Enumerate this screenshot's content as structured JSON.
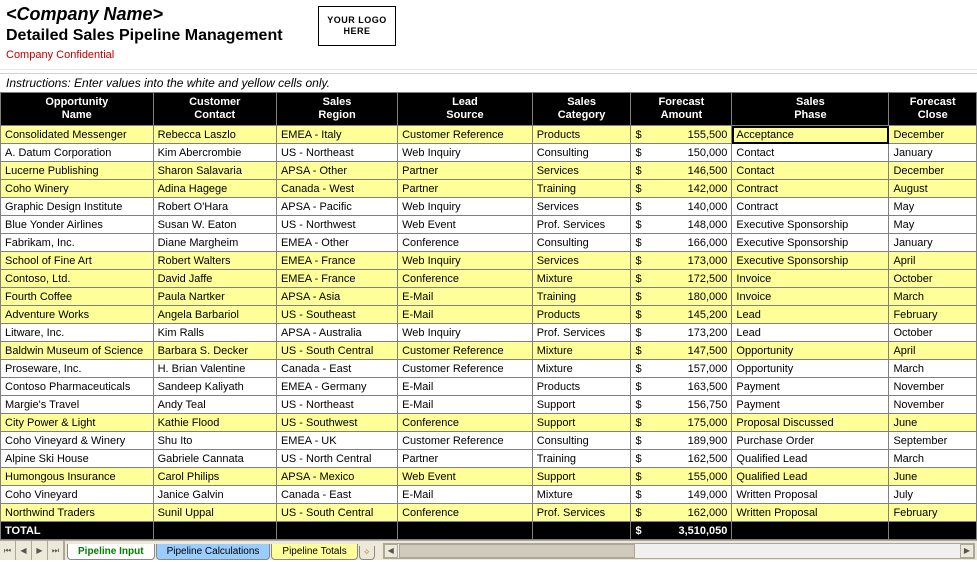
{
  "header": {
    "company_name": "<Company Name>",
    "title": "Detailed Sales Pipeline Management",
    "confidential": "Company Confidential",
    "logo_text": "YOUR LOGO HERE",
    "instructions": "Instructions: Enter values into the white and yellow cells only."
  },
  "colors": {
    "header_bg": "#000000",
    "header_fg": "#ffffff",
    "row_yellow": "#ffff99",
    "row_white": "#ffffff",
    "grid_border": "#808080",
    "confidential": "#c00000",
    "tab_active_text": "#008000",
    "tab_calc_bg": "#99ccff",
    "tab_totals_bg": "#ffff99",
    "app_chrome": "#ece9d8"
  },
  "columns": [
    {
      "line1": "Opportunity",
      "line2": "Name",
      "class": "c0"
    },
    {
      "line1": "Customer",
      "line2": "Contact",
      "class": "c1"
    },
    {
      "line1": "Sales",
      "line2": "Region",
      "class": "c2"
    },
    {
      "line1": "Lead",
      "line2": "Source",
      "class": "c3"
    },
    {
      "line1": "Sales",
      "line2": "Category",
      "class": "c4"
    },
    {
      "line1": "Forecast",
      "line2": "Amount",
      "class": "c5"
    },
    {
      "line1": "Sales",
      "line2": "Phase",
      "class": "c6"
    },
    {
      "line1": "Forecast",
      "line2": "Close",
      "class": "c7"
    }
  ],
  "rows": [
    {
      "bg": "yellow",
      "cells": [
        "Consolidated Messenger",
        "Rebecca Laszlo",
        "EMEA - Italy",
        "Customer Reference",
        "Products",
        "155,500",
        "Acceptance",
        "December"
      ],
      "phase_selected": true
    },
    {
      "bg": "white",
      "cells": [
        "A. Datum Corporation",
        "Kim Abercrombie",
        "US - Northeast",
        "Web Inquiry",
        "Consulting",
        "150,000",
        "Contact",
        "January"
      ]
    },
    {
      "bg": "yellow",
      "cells": [
        "Lucerne Publishing",
        "Sharon Salavaria",
        "APSA - Other",
        "Partner",
        "Services",
        "146,500",
        "Contact",
        "December"
      ]
    },
    {
      "bg": "yellow",
      "cells": [
        "Coho Winery",
        "Adina Hagege",
        "Canada - West",
        "Partner",
        "Training",
        "142,000",
        "Contract",
        "August"
      ]
    },
    {
      "bg": "white",
      "cells": [
        "Graphic Design Institute",
        "Robert O'Hara",
        "APSA - Pacific",
        "Web Inquiry",
        "Services",
        "140,000",
        "Contract",
        "May"
      ]
    },
    {
      "bg": "white",
      "cells": [
        "Blue Yonder Airlines",
        "Susan W. Eaton",
        "US - Northwest",
        "Web Event",
        "Prof. Services",
        "148,000",
        "Executive Sponsorship",
        "May"
      ]
    },
    {
      "bg": "white",
      "cells": [
        "Fabrikam, Inc.",
        "Diane Margheim",
        "EMEA - Other",
        "Conference",
        "Consulting",
        "166,000",
        "Executive Sponsorship",
        "January"
      ]
    },
    {
      "bg": "yellow",
      "cells": [
        "School of Fine Art",
        "Robert Walters",
        "EMEA - France",
        "Web Inquiry",
        "Services",
        "173,000",
        "Executive Sponsorship",
        "April"
      ]
    },
    {
      "bg": "yellow",
      "cells": [
        "Contoso, Ltd.",
        "David Jaffe",
        "EMEA - France",
        "Conference",
        "Mixture",
        "172,500",
        "Invoice",
        "October"
      ]
    },
    {
      "bg": "yellow",
      "cells": [
        "Fourth Coffee",
        "Paula Nartker",
        "APSA - Asia",
        "E-Mail",
        "Training",
        "180,000",
        "Invoice",
        "March"
      ]
    },
    {
      "bg": "yellow",
      "cells": [
        "Adventure Works",
        "Angela Barbariol",
        "US - Southeast",
        "E-Mail",
        "Products",
        "145,200",
        "Lead",
        "February"
      ]
    },
    {
      "bg": "white",
      "cells": [
        "Litware, Inc.",
        "Kim Ralls",
        "APSA - Australia",
        "Web Inquiry",
        "Prof. Services",
        "173,200",
        "Lead",
        "October"
      ]
    },
    {
      "bg": "yellow",
      "cells": [
        "Baldwin Museum of Science",
        "Barbara S. Decker",
        "US - South Central",
        "Customer Reference",
        "Mixture",
        "147,500",
        "Opportunity",
        "April"
      ]
    },
    {
      "bg": "white",
      "cells": [
        "Proseware, Inc.",
        "H. Brian Valentine",
        "Canada - East",
        "Customer Reference",
        "Mixture",
        "157,000",
        "Opportunity",
        "March"
      ]
    },
    {
      "bg": "white",
      "cells": [
        "Contoso Pharmaceuticals",
        "Sandeep Kaliyath",
        "EMEA - Germany",
        "E-Mail",
        "Products",
        "163,500",
        "Payment",
        "November"
      ]
    },
    {
      "bg": "white",
      "cells": [
        "Margie's Travel",
        "Andy Teal",
        "US - Northeast",
        "E-Mail",
        "Support",
        "156,750",
        "Payment",
        "November"
      ]
    },
    {
      "bg": "yellow",
      "cells": [
        "City Power & Light",
        "Kathie Flood",
        "US - Southwest",
        "Conference",
        "Support",
        "175,000",
        "Proposal Discussed",
        "June"
      ]
    },
    {
      "bg": "white",
      "cells": [
        "Coho Vineyard & Winery",
        "Shu Ito",
        "EMEA - UK",
        "Customer Reference",
        "Consulting",
        "189,900",
        "Purchase Order",
        "September"
      ]
    },
    {
      "bg": "white",
      "cells": [
        "Alpine Ski House",
        "Gabriele Cannata",
        "US - North Central",
        "Partner",
        "Training",
        "162,500",
        "Qualified Lead",
        "March"
      ]
    },
    {
      "bg": "yellow",
      "cells": [
        "Humongous Insurance",
        "Carol Philips",
        "APSA - Mexico",
        "Web Event",
        "Support",
        "155,000",
        "Qualified Lead",
        "June"
      ]
    },
    {
      "bg": "white",
      "cells": [
        "Coho Vineyard",
        "Janice Galvin",
        "Canada - East",
        "E-Mail",
        "Mixture",
        "149,000",
        "Written Proposal",
        "July"
      ]
    },
    {
      "bg": "yellow",
      "cells": [
        "Northwind Traders",
        "Sunil Uppal",
        "US - South Central",
        "Conference",
        "Prof. Services",
        "162,000",
        "Written Proposal",
        "February"
      ]
    }
  ],
  "total": {
    "label": "TOTAL",
    "amount": "3,510,050"
  },
  "tabs": {
    "nav": [
      "⏮",
      "◀",
      "▶",
      "⏭"
    ],
    "items": [
      {
        "label": "Pipeline Input",
        "kind": "active"
      },
      {
        "label": "Pipeline Calculations",
        "kind": "calc"
      },
      {
        "label": "Pipeline Totals",
        "kind": "totals"
      }
    ]
  }
}
